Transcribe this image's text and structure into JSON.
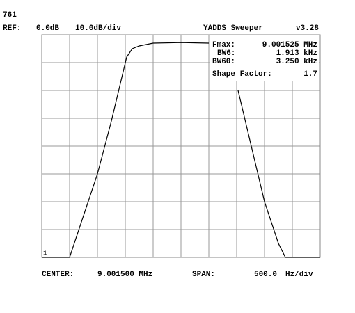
{
  "chart_data": {
    "type": "line",
    "header": {
      "id": "761",
      "ref_label": "REF:",
      "ref": "0.0dB",
      "scale": "10.0dB/div",
      "app": "YADDS Sweeper",
      "version": "v3.28"
    },
    "info": [
      [
        "Fmax:",
        "9.001525 MHz"
      ],
      [
        "BW6:",
        "1.913 kHz"
      ],
      [
        "BW60:",
        "3.250 kHz"
      ],
      [
        "Shape Factor:",
        "1.7"
      ]
    ],
    "marker": "1",
    "footer": {
      "center_label": "CENTER:",
      "center": "9.001500 MHz",
      "span_label": "SPAN:",
      "span": "500.0",
      "span_unit": "Hz/div"
    },
    "x": [
      -2500,
      -2000,
      -1500,
      -1250,
      -975,
      -875,
      -750,
      -500,
      0,
      500,
      700,
      1025,
      1500,
      1750,
      1875,
      2500
    ],
    "values": [
      -80,
      -80,
      -50,
      -31,
      -8,
      -5,
      -4,
      -3,
      -2.8,
      -3,
      null,
      -20,
      -60,
      -75,
      -80,
      -80
    ],
    "color": "#000000",
    "xlim": [
      -2500,
      2500
    ],
    "ylim": [
      -80,
      0
    ],
    "xticks": [
      -2500,
      -2000,
      -1500,
      -1000,
      -500,
      0,
      500,
      1000,
      1500,
      2000,
      2500
    ],
    "yticks": [
      -80,
      -70,
      -60,
      -50,
      -40,
      -30,
      -20,
      -10,
      0
    ],
    "grid": true
  }
}
